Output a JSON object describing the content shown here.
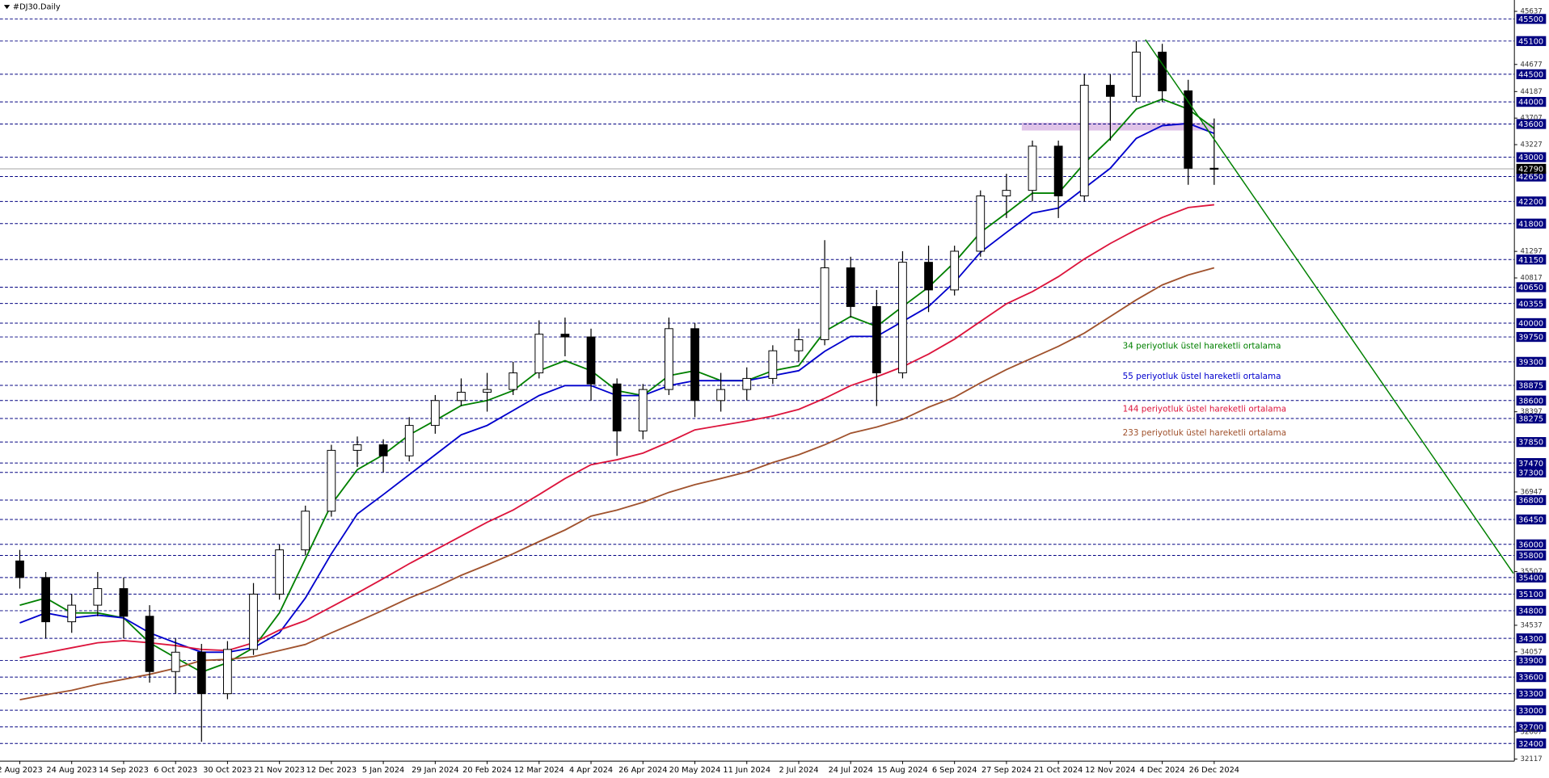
{
  "chart_data": {
    "type": "candlestick",
    "title": "#DJ30.Daily",
    "categories": [
      "2 Aug 2023",
      null,
      "24 Aug 2023",
      null,
      "14 Sep 2023",
      null,
      "6 Oct 2023",
      null,
      "30 Oct 2023",
      null,
      "21 Nov 2023",
      null,
      "12 Dec 2023",
      null,
      "5 Jan 2024",
      null,
      "29 Jan 2024",
      null,
      "20 Feb 2024",
      null,
      "12 Mar 2024",
      null,
      "4 Apr 2024",
      null,
      "26 Apr 2024",
      null,
      "20 May 2024",
      null,
      "11 Jun 2024",
      null,
      "2 Jul 2024",
      null,
      "24 Jul 2024",
      null,
      "15 Aug 2024",
      null,
      "6 Sep 2024",
      null,
      "27 Sep 2024",
      null,
      "21 Oct 2024",
      null,
      "12 Nov 2024",
      null,
      "4 Dec 2024",
      null,
      "26 Dec 2024"
    ],
    "open": [
      35700,
      35400,
      34600,
      34900,
      35200,
      34700,
      33700,
      34050,
      33300,
      34100,
      35100,
      35900,
      36600,
      37700,
      37800,
      37600,
      38150,
      38600,
      38750,
      38800,
      39100,
      39800,
      39750,
      38900,
      38050,
      38800,
      39900,
      38600,
      38800,
      39000,
      39500,
      39700,
      41000,
      40300,
      39100,
      41100,
      40600,
      41300,
      42300,
      42400,
      43200,
      42300,
      44300,
      44100,
      44900,
      44200,
      42800
    ],
    "high": [
      35900,
      35500,
      35100,
      35500,
      35400,
      34900,
      34300,
      34200,
      34250,
      35300,
      36000,
      36700,
      37800,
      37950,
      37900,
      38300,
      38700,
      39000,
      39100,
      39300,
      40050,
      40100,
      39900,
      39000,
      38900,
      40100,
      40000,
      39100,
      39200,
      39600,
      39900,
      41500,
      41200,
      40600,
      41300,
      41400,
      41400,
      42400,
      42700,
      43300,
      43300,
      44500,
      44500,
      45100,
      45050,
      44400,
      43700
    ],
    "low": [
      35200,
      34300,
      34400,
      34700,
      34300,
      33500,
      33300,
      32430,
      33200,
      34000,
      35000,
      35800,
      36500,
      37400,
      37300,
      37500,
      38000,
      38500,
      38400,
      38700,
      39000,
      39400,
      38600,
      37600,
      37900,
      38700,
      38300,
      38400,
      38600,
      38900,
      39300,
      39600,
      40100,
      38500,
      39000,
      40200,
      40500,
      41200,
      41900,
      42200,
      41900,
      42200,
      43300,
      44000,
      44000,
      42500,
      42500
    ],
    "close": [
      35400,
      34600,
      34900,
      35200,
      34700,
      33700,
      34050,
      33300,
      34100,
      35100,
      35900,
      36600,
      37700,
      37800,
      37600,
      38150,
      38600,
      38750,
      38800,
      39100,
      39800,
      39750,
      38900,
      38050,
      38800,
      39900,
      38600,
      38800,
      39000,
      39500,
      39700,
      41000,
      40300,
      39100,
      41100,
      40600,
      41300,
      42300,
      42400,
      43200,
      42300,
      44300,
      44100,
      44900,
      44200,
      42800,
      42790
    ],
    "up_color": "#ffffff",
    "down_color": "#000000",
    "series": [
      {
        "name": "34 periyotluk üstel hareketli ortalama",
        "color": "#008000",
        "values": [
          34900,
          35030,
          34760,
          34760,
          34670,
          34220,
          33950,
          33690,
          33860,
          34130,
          34760,
          35740,
          36720,
          37350,
          37620,
          37980,
          38240,
          38510,
          38600,
          38780,
          39140,
          39320,
          39140,
          38780,
          38690,
          39050,
          39140,
          38960,
          38960,
          39140,
          39230,
          39850,
          40120,
          39940,
          40300,
          40650,
          41100,
          41640,
          41990,
          42350,
          42350,
          42890,
          43340,
          43870,
          44050,
          43870,
          43520
        ]
      },
      {
        "name": "55 periyotluk üstel hareketli ortalama",
        "color": "#0000cd",
        "values": [
          34580,
          34760,
          34670,
          34720,
          34670,
          34400,
          34220,
          34050,
          34050,
          34130,
          34400,
          35030,
          35830,
          36550,
          36900,
          37260,
          37620,
          37980,
          38150,
          38420,
          38690,
          38870,
          38870,
          38690,
          38690,
          38870,
          38960,
          38960,
          38960,
          39050,
          39140,
          39490,
          39760,
          39760,
          40030,
          40300,
          40740,
          41280,
          41640,
          41990,
          42080,
          42440,
          42800,
          43340,
          43570,
          43610,
          43430
        ]
      },
      {
        "name": "144 periyotluk üstel hareketli ortalama",
        "color": "#dc143c",
        "values": [
          33950,
          34040,
          34130,
          34220,
          34260,
          34220,
          34170,
          34100,
          34080,
          34220,
          34450,
          34620,
          34870,
          35120,
          35380,
          35650,
          35900,
          36150,
          36400,
          36620,
          36900,
          37190,
          37440,
          37530,
          37650,
          37850,
          38070,
          38150,
          38230,
          38320,
          38440,
          38640,
          38870,
          39030,
          39210,
          39440,
          39710,
          40030,
          40350,
          40570,
          40840,
          41160,
          41440,
          41690,
          41910,
          42090,
          42140
        ]
      },
      {
        "name": "233 periyotluk üstel hareketli ortalama",
        "color": "#a0522d",
        "values": [
          33190,
          33280,
          33360,
          33470,
          33560,
          33650,
          33760,
          33900,
          33920,
          33970,
          34080,
          34190,
          34400,
          34600,
          34810,
          35030,
          35220,
          35440,
          35630,
          35830,
          36050,
          36260,
          36510,
          36620,
          36760,
          36940,
          37080,
          37190,
          37310,
          37480,
          37620,
          37800,
          38010,
          38120,
          38260,
          38480,
          38660,
          38920,
          39160,
          39370,
          39580,
          39820,
          40120,
          40420,
          40690,
          40870,
          41000
        ]
      }
    ],
    "ylim": [
      32080,
      45770
    ],
    "yticks": [
      45637,
      44677,
      44187,
      43707,
      43227,
      41297,
      40817,
      38397,
      36947,
      35507,
      34537,
      34057,
      32607,
      32117
    ],
    "levels": [
      45500,
      45100,
      44500,
      44000,
      43600,
      43000,
      42650,
      42200,
      41800,
      41150,
      40650,
      40355,
      40000,
      39750,
      39300,
      38875,
      38600,
      38275,
      37850,
      37470,
      37300,
      36800,
      36450,
      36000,
      35800,
      35400,
      35100,
      34800,
      34300,
      33900,
      33600,
      33300,
      33000,
      32700,
      32400
    ],
    "level_color": "#000080",
    "last_price": 42790,
    "grid": false
  }
}
